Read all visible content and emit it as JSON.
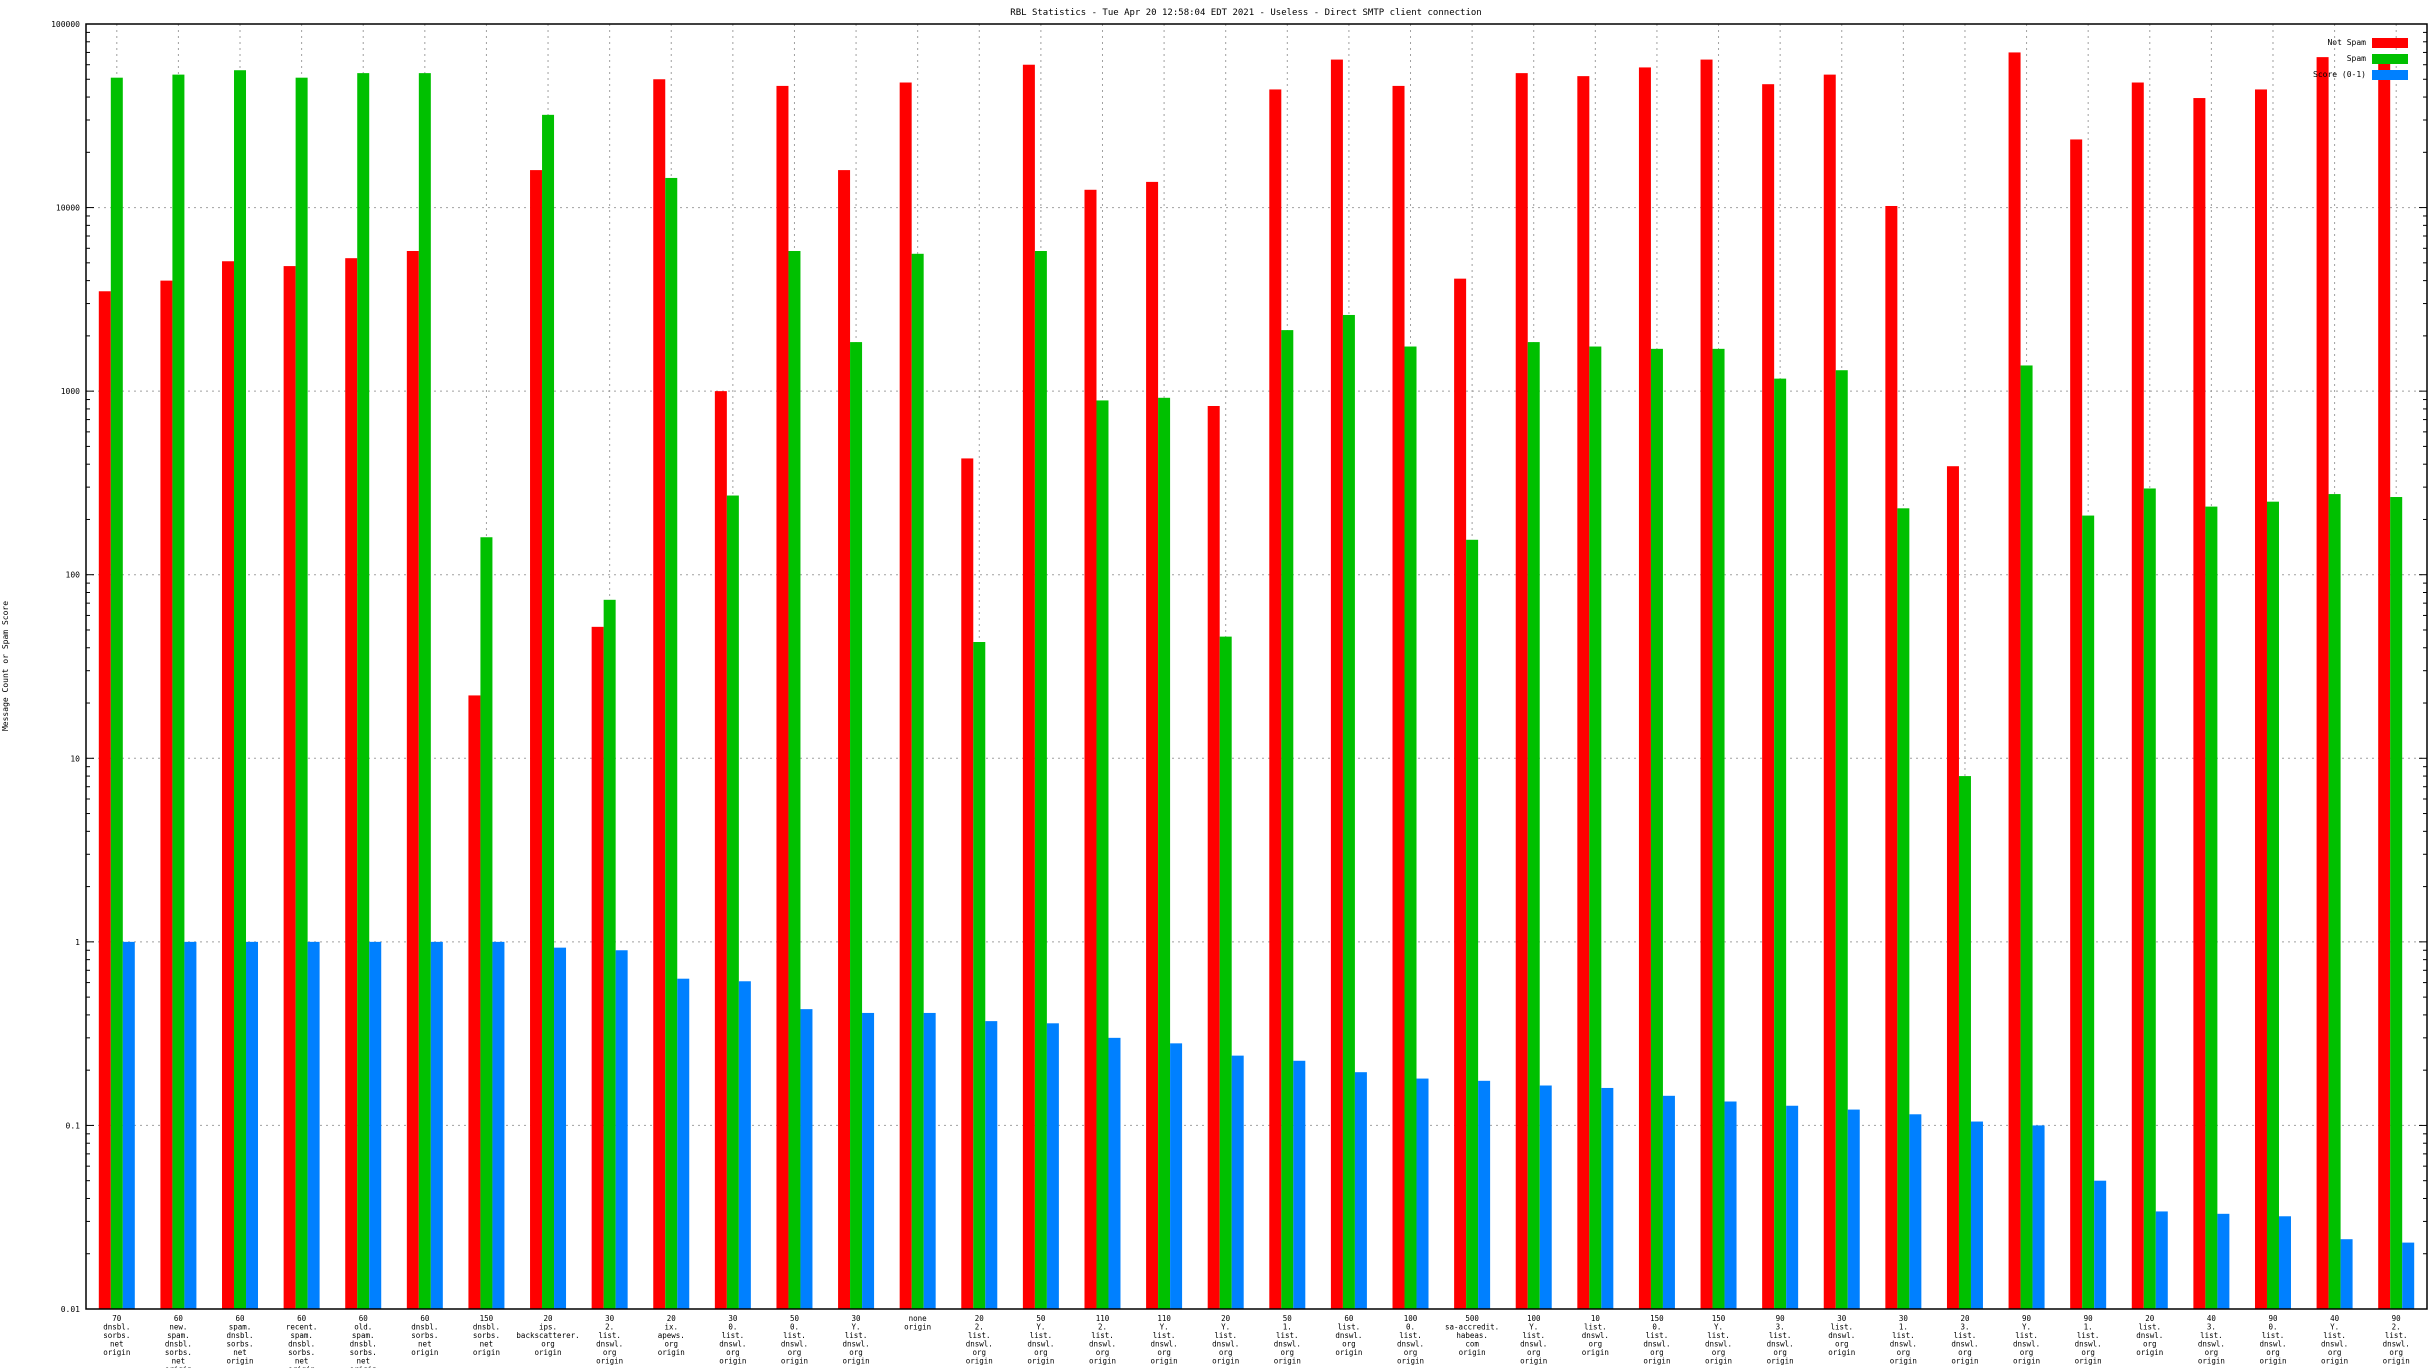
{
  "chart_data": {
    "type": "bar",
    "title": "RBL Statistics - Tue Apr 20 12:58:04 EDT 2021 - Useless - Direct SMTP client connection",
    "xlabel": "",
    "ylabel": "Message Count or Spam Score",
    "yscale": "log",
    "ylim": [
      0.01,
      100000
    ],
    "grid": true,
    "legend_position": "top-right",
    "y_ticks": [
      "0.01",
      "0.1",
      "1",
      "10",
      "100",
      "1000",
      "10000",
      "100000"
    ],
    "categories": [
      [
        "70",
        "dnsbl.",
        "sorbs.",
        "net",
        "origin"
      ],
      [
        "60",
        "new.",
        "spam.",
        "dnsbl.",
        "sorbs.",
        "net",
        "origin"
      ],
      [
        "60",
        "spam.",
        "dnsbl.",
        "sorbs.",
        "net",
        "origin"
      ],
      [
        "60",
        "recent.",
        "spam.",
        "dnsbl.",
        "sorbs.",
        "net",
        "origin"
      ],
      [
        "60",
        "old.",
        "spam.",
        "dnsbl.",
        "sorbs.",
        "net",
        "origin"
      ],
      [
        "60",
        "dnsbl.",
        "sorbs.",
        "net",
        "origin"
      ],
      [
        "150",
        "dnsbl.",
        "sorbs.",
        "net",
        "origin"
      ],
      [
        "20",
        "ips.",
        "backscatterer.",
        "org",
        "origin"
      ],
      [
        "30",
        "2.",
        "list.",
        "dnswl.",
        "org",
        "origin"
      ],
      [
        "20",
        "ix.",
        "apews.",
        "org",
        "origin"
      ],
      [
        "30",
        "0.",
        "list.",
        "dnswl.",
        "org",
        "origin"
      ],
      [
        "50",
        "0.",
        "list.",
        "dnswl.",
        "org",
        "origin"
      ],
      [
        "30",
        "Y.",
        "list.",
        "dnswl.",
        "org",
        "origin"
      ],
      [
        "none",
        "origin"
      ],
      [
        "20",
        "2.",
        "list.",
        "dnswl.",
        "org",
        "origin"
      ],
      [
        "50",
        "Y.",
        "list.",
        "dnswl.",
        "org",
        "origin"
      ],
      [
        "110",
        "2.",
        "list.",
        "dnswl.",
        "org",
        "origin"
      ],
      [
        "110",
        "Y.",
        "list.",
        "dnswl.",
        "org",
        "origin"
      ],
      [
        "20",
        "Y.",
        "list.",
        "dnswl.",
        "org",
        "origin"
      ],
      [
        "50",
        "1.",
        "list.",
        "dnswl.",
        "org",
        "origin"
      ],
      [
        "60",
        "list.",
        "dnswl.",
        "org",
        "origin"
      ],
      [
        "100",
        "0.",
        "list.",
        "dnswl.",
        "org",
        "origin"
      ],
      [
        "500",
        "sa-accredit.",
        "habeas.",
        "com",
        "origin"
      ],
      [
        "100",
        "Y.",
        "list.",
        "dnswl.",
        "org",
        "origin"
      ],
      [
        "10",
        "list.",
        "dnswl.",
        "org",
        "origin"
      ],
      [
        "150",
        "0.",
        "list.",
        "dnswl.",
        "org",
        "origin"
      ],
      [
        "150",
        "Y.",
        "list.",
        "dnswl.",
        "org",
        "origin"
      ],
      [
        "90",
        "3.",
        "list.",
        "dnswl.",
        "org",
        "origin"
      ],
      [
        "30",
        "list.",
        "dnswl.",
        "org",
        "origin"
      ],
      [
        "30",
        "1.",
        "list.",
        "dnswl.",
        "org",
        "origin"
      ],
      [
        "20",
        "3.",
        "list.",
        "dnswl.",
        "org",
        "origin"
      ],
      [
        "90",
        "Y.",
        "list.",
        "dnswl.",
        "org",
        "origin"
      ],
      [
        "90",
        "1.",
        "list.",
        "dnswl.",
        "org",
        "origin"
      ],
      [
        "20",
        "list.",
        "dnswl.",
        "org",
        "origin"
      ],
      [
        "40",
        "3.",
        "list.",
        "dnswl.",
        "org",
        "origin"
      ],
      [
        "90",
        "0.",
        "list.",
        "dnswl.",
        "org",
        "origin"
      ],
      [
        "40",
        "Y.",
        "list.",
        "dnswl.",
        "org",
        "origin"
      ],
      [
        "90",
        "2.",
        "list.",
        "dnswl.",
        "org",
        "origin"
      ]
    ],
    "series": [
      {
        "name": "Not Spam",
        "color": "#ff0000",
        "values": [
          3500,
          4000,
          5100,
          4800,
          5300,
          5800,
          22,
          16000,
          52,
          50000,
          1000,
          46000,
          16000,
          48000,
          430,
          60000,
          12500,
          13800,
          830,
          44000,
          64000,
          46000,
          4100,
          54000,
          52000,
          58000,
          64000,
          47000,
          53000,
          10200,
          390,
          70000,
          23500,
          48000,
          39500,
          44000,
          66000,
          64000
        ]
      },
      {
        "name": "Spam",
        "color": "#00c000",
        "values": [
          51000,
          53000,
          56000,
          51000,
          54000,
          54000,
          160,
          32000,
          73,
          14500,
          270,
          5800,
          1850,
          5600,
          43,
          5800,
          890,
          920,
          46,
          2150,
          2600,
          1750,
          155,
          1850,
          1750,
          1700,
          1700,
          1170,
          1300,
          230,
          8,
          1380,
          210,
          295,
          235,
          250,
          275,
          265
        ]
      },
      {
        "name": "Score (0-1)",
        "color": "#0080ff",
        "values": [
          1,
          1,
          1,
          1,
          1,
          1,
          1,
          0.93,
          0.9,
          0.63,
          0.61,
          0.43,
          0.41,
          0.41,
          0.37,
          0.36,
          0.3,
          0.28,
          0.24,
          0.225,
          0.195,
          0.18,
          0.175,
          0.165,
          0.16,
          0.145,
          0.135,
          0.128,
          0.122,
          0.115,
          0.105,
          0.1,
          0.05,
          0.034,
          0.033,
          0.032,
          0.024,
          0.023
        ]
      }
    ]
  }
}
